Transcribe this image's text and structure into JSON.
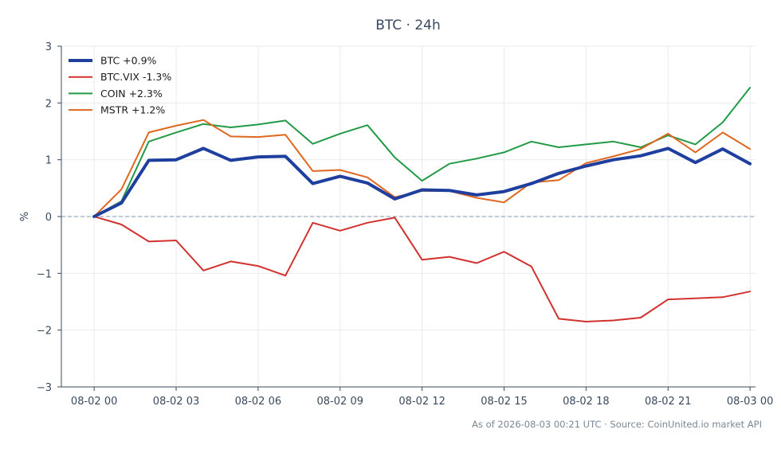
{
  "chart_data": {
    "type": "line",
    "title": "BTC · 24h",
    "ylabel": "%",
    "xlabel": "",
    "ylim": [
      -3,
      3
    ],
    "yticks": [
      {
        "value": 3,
        "label": "3"
      },
      {
        "value": 2,
        "label": "2"
      },
      {
        "value": 1,
        "label": "1"
      },
      {
        "value": 0,
        "label": "0"
      },
      {
        "value": -1,
        "label": "−1"
      },
      {
        "value": -2,
        "label": "−2"
      },
      {
        "value": -3,
        "label": "−3"
      }
    ],
    "xlim": [
      -1.2,
      24.2
    ],
    "xticks": [
      {
        "value": 0,
        "label": "08-02 00"
      },
      {
        "value": 3,
        "label": "08-02 03"
      },
      {
        "value": 6,
        "label": "08-02 06"
      },
      {
        "value": 9,
        "label": "08-02 09"
      },
      {
        "value": 12,
        "label": "08-02 12"
      },
      {
        "value": 15,
        "label": "08-02 15"
      },
      {
        "value": 18,
        "label": "08-02 18"
      },
      {
        "value": 21,
        "label": "08-02 21"
      },
      {
        "value": 24,
        "label": "08-03 00"
      }
    ],
    "x": [
      0,
      1,
      2,
      3,
      4,
      5,
      6,
      7,
      8,
      9,
      10,
      11,
      12,
      13,
      14,
      15,
      16,
      17,
      18,
      19,
      20,
      21,
      22,
      23,
      24
    ],
    "grid": true,
    "zero_line": {
      "value": 0,
      "style": "dashed",
      "color": "#8a9ab8"
    },
    "legend_position": "top-left",
    "series": [
      {
        "name": "BTC +0.9%",
        "color": "#1f3f9e",
        "width": 4,
        "values": [
          0,
          0.24,
          0.99,
          1.0,
          1.2,
          0.99,
          1.05,
          1.06,
          0.58,
          0.71,
          0.59,
          0.31,
          0.47,
          0.46,
          0.38,
          0.44,
          0.58,
          0.76,
          0.89,
          1.0,
          1.07,
          1.2,
          0.95,
          1.19,
          0.93
        ]
      },
      {
        "name": "BTC.VIX -1.3%",
        "color": "#d1322e",
        "width": 2,
        "values": [
          0,
          -0.14,
          -0.44,
          -0.42,
          -0.95,
          -0.79,
          -0.87,
          -1.04,
          -0.11,
          -0.25,
          -0.11,
          -0.02,
          -0.76,
          -0.71,
          -0.82,
          -0.62,
          -0.88,
          -1.8,
          -1.85,
          -1.83,
          -1.78,
          -1.46,
          -1.44,
          -1.42,
          -1.32
        ]
      },
      {
        "name": "COIN +2.3%",
        "color": "#229a46",
        "width": 2,
        "values": [
          0,
          0.27,
          1.32,
          1.48,
          1.63,
          1.57,
          1.62,
          1.69,
          1.28,
          1.46,
          1.61,
          1.04,
          0.63,
          0.93,
          1.02,
          1.13,
          1.32,
          1.22,
          1.27,
          1.32,
          1.22,
          1.43,
          1.27,
          1.66,
          2.27
        ]
      },
      {
        "name": "MSTR +1.2%",
        "color": "#e0671e",
        "width": 2,
        "values": [
          0,
          0.48,
          1.48,
          1.6,
          1.7,
          1.41,
          1.4,
          1.44,
          0.8,
          0.82,
          0.69,
          0.34,
          0.45,
          0.45,
          0.33,
          0.25,
          0.6,
          0.64,
          0.94,
          1.06,
          1.19,
          1.46,
          1.13,
          1.48,
          1.19
        ]
      }
    ]
  },
  "footer": "As of 2026-08-03 00:21 UTC · Source: CoinUnited.io market API"
}
